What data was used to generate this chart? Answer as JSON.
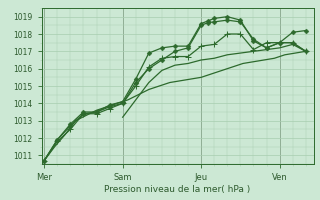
{
  "background_color": "#cce8d4",
  "grid_color": "#a8cdb0",
  "line_color": "#2d6a2d",
  "text_color": "#2d5a2d",
  "vline_color": "#5a6a5a",
  "xlabel": "Pression niveau de la mer( hPa )",
  "ylim": [
    1010.5,
    1019.5
  ],
  "yticks": [
    1011,
    1012,
    1013,
    1014,
    1015,
    1016,
    1017,
    1018,
    1019
  ],
  "day_labels": [
    "Mer",
    "Sam",
    "Jeu",
    "Ven"
  ],
  "day_positions": [
    0,
    3,
    6,
    9
  ],
  "xlim": [
    -0.1,
    10.3
  ],
  "series1_x": [
    0,
    0.4,
    0.8,
    1.2,
    1.6,
    2.0,
    2.4,
    2.8,
    3.2,
    3.6,
    4.0,
    4.4,
    4.8,
    5.2,
    5.6,
    6.0,
    6.4,
    6.8,
    7.2,
    7.6,
    8.0,
    8.4,
    8.8,
    9.2,
    9.6,
    10.0
  ],
  "series1_y": [
    1010.7,
    1011.5,
    1012.2,
    1013.0,
    1013.3,
    1013.6,
    1013.8,
    1014.0,
    1014.2,
    1014.5,
    1014.8,
    1015.0,
    1015.2,
    1015.3,
    1015.4,
    1015.5,
    1015.7,
    1015.9,
    1016.1,
    1016.3,
    1016.4,
    1016.5,
    1016.6,
    1016.8,
    1016.9,
    1017.0
  ],
  "series2_x": [
    0,
    0.5,
    1.0,
    1.5,
    2.0,
    2.5,
    3.0,
    3.5,
    4.0,
    4.5,
    5.0,
    5.5,
    6.0,
    6.25,
    6.5,
    7.0,
    7.5,
    8.0,
    8.5,
    9.0,
    9.5,
    10.0
  ],
  "series2_y": [
    1010.7,
    1011.9,
    1012.7,
    1013.4,
    1013.5,
    1013.8,
    1014.0,
    1015.2,
    1016.0,
    1016.5,
    1017.0,
    1017.2,
    1018.5,
    1018.65,
    1018.7,
    1018.8,
    1018.7,
    1017.7,
    1017.2,
    1017.5,
    1017.5,
    1017.0
  ],
  "series3_x": [
    0,
    0.5,
    1.0,
    1.5,
    2.0,
    2.5,
    3.0,
    3.5,
    4.0,
    4.5,
    5.0,
    5.5,
    6.0,
    6.25,
    6.5,
    7.0,
    7.5,
    8.0,
    8.5,
    9.0,
    9.5,
    10.0
  ],
  "series3_y": [
    1010.7,
    1011.9,
    1012.8,
    1013.5,
    1013.5,
    1013.9,
    1014.1,
    1015.4,
    1016.9,
    1017.2,
    1017.3,
    1017.3,
    1018.6,
    1018.75,
    1018.9,
    1019.0,
    1018.8,
    1017.6,
    1017.2,
    1017.5,
    1018.1,
    1018.2
  ],
  "series4_x": [
    0,
    0.5,
    1.0,
    1.5,
    2.0,
    2.5,
    3.0,
    3.5,
    4.0,
    4.5,
    5.0,
    5.5,
    6.0,
    6.5,
    7.0,
    7.5,
    8.0,
    8.5,
    9.0,
    9.5,
    10.0
  ],
  "series4_y": [
    1010.7,
    1011.8,
    1012.5,
    1013.4,
    1013.4,
    1013.7,
    1014.0,
    1015.0,
    1016.1,
    1016.6,
    1016.7,
    1016.7,
    1017.3,
    1017.4,
    1018.0,
    1018.0,
    1017.1,
    1017.5,
    1017.5,
    1017.5,
    1017.0
  ],
  "series5_x": [
    3.0,
    3.5,
    4.0,
    4.5,
    5.0,
    5.5,
    6.0,
    6.5,
    7.0,
    7.5,
    8.0,
    8.5,
    9.0,
    9.5,
    10.0
  ],
  "series5_y": [
    1013.2,
    1014.2,
    1015.2,
    1015.9,
    1016.2,
    1016.3,
    1016.5,
    1016.6,
    1016.8,
    1016.9,
    1017.0,
    1017.1,
    1017.2,
    1017.4,
    1017.0
  ]
}
